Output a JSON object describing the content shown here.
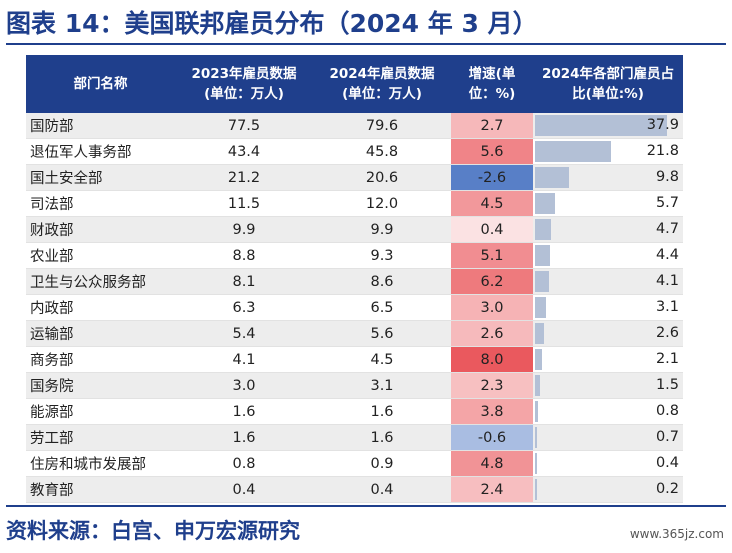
{
  "title": "图表 14：美国联邦雇员分布（2024 年 3 月）",
  "headers": {
    "dept": "部门名称",
    "y2023": "2023年雇员数据(单位：万人)",
    "y2024": "2024年雇员数据(单位：万人)",
    "growth": "增速(单位：%)",
    "share": "2024年各部门雇员占比(单位:%)"
  },
  "colors": {
    "header_bg": "#1f3f8c",
    "positive_growth": "#e8474c",
    "negative_growth": "#4f78c4",
    "share_bar": "#b3c0d6"
  },
  "rows": [
    {
      "name": "国防部",
      "y2023": "77.5",
      "y2024": "79.6",
      "growth": "2.7",
      "share": "37.9"
    },
    {
      "name": "退伍军人事务部",
      "y2023": "43.4",
      "y2024": "45.8",
      "growth": "5.6",
      "share": "21.8"
    },
    {
      "name": "国土安全部",
      "y2023": "21.2",
      "y2024": "20.6",
      "growth": "-2.6",
      "share": "9.8"
    },
    {
      "name": "司法部",
      "y2023": "11.5",
      "y2024": "12.0",
      "growth": "4.5",
      "share": "5.7"
    },
    {
      "name": "财政部",
      "y2023": "9.9",
      "y2024": "9.9",
      "growth": "0.4",
      "share": "4.7"
    },
    {
      "name": "农业部",
      "y2023": "8.8",
      "y2024": "9.3",
      "growth": "5.1",
      "share": "4.4"
    },
    {
      "name": "卫生与公众服务部",
      "y2023": "8.1",
      "y2024": "8.6",
      "growth": "6.2",
      "share": "4.1"
    },
    {
      "name": "内政部",
      "y2023": "6.3",
      "y2024": "6.5",
      "growth": "3.0",
      "share": "3.1"
    },
    {
      "name": "运输部",
      "y2023": "5.4",
      "y2024": "5.6",
      "growth": "2.6",
      "share": "2.6"
    },
    {
      "name": "商务部",
      "y2023": "4.1",
      "y2024": "4.5",
      "growth": "8.0",
      "share": "2.1"
    },
    {
      "name": "国务院",
      "y2023": "3.0",
      "y2024": "3.1",
      "growth": "2.3",
      "share": "1.5"
    },
    {
      "name": "能源部",
      "y2023": "1.6",
      "y2024": "1.6",
      "growth": "3.8",
      "share": "0.8"
    },
    {
      "name": "劳工部",
      "y2023": "1.6",
      "y2024": "1.6",
      "growth": "-0.6",
      "share": "0.7"
    },
    {
      "name": "住房和城市发展部",
      "y2023": "0.8",
      "y2024": "0.9",
      "growth": "4.8",
      "share": "0.4"
    },
    {
      "name": "教育部",
      "y2023": "0.4",
      "y2024": "0.4",
      "growth": "2.4",
      "share": "0.2"
    }
  ],
  "source": "资料来源：白宫、申万宏源研究",
  "watermark": "www.365jz.com"
}
